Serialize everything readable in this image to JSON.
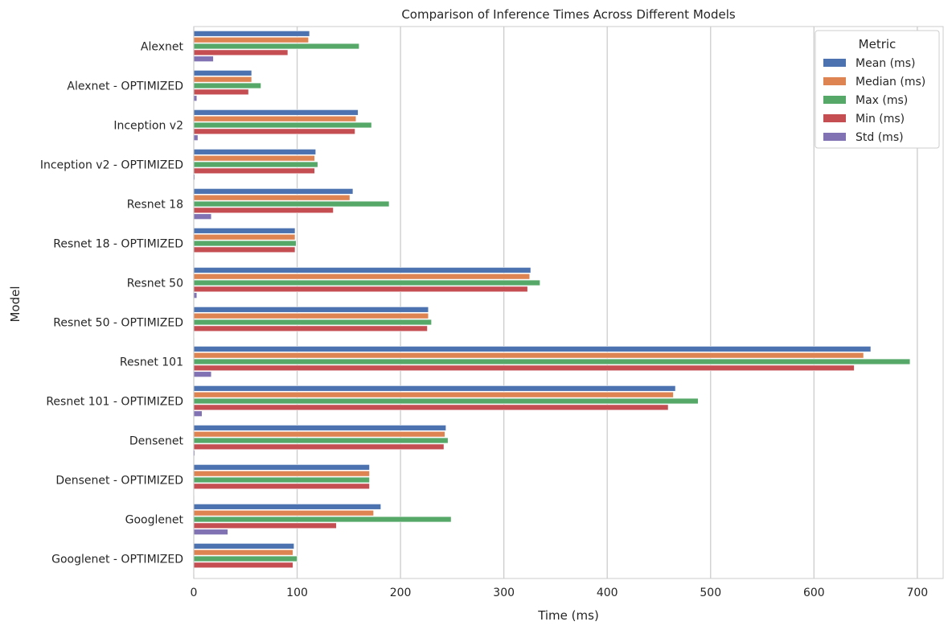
{
  "chart_data": {
    "type": "bar",
    "orientation": "horizontal",
    "title": "Comparison of Inference Times Across Different Models",
    "xlabel": "Time (ms)",
    "ylabel": "Model",
    "xlim": [
      0,
      725
    ],
    "xticks": [
      0,
      100,
      200,
      300,
      400,
      500,
      600,
      700
    ],
    "grid": "vertical",
    "legend": {
      "title": "Metric",
      "position": "top-right"
    },
    "categories": [
      "Alexnet",
      "Alexnet - OPTIMIZED",
      "Inception v2",
      "Inception v2 - OPTIMIZED",
      "Resnet 18",
      "Resnet 18 - OPTIMIZED",
      "Resnet 50",
      "Resnet 50 - OPTIMIZED",
      "Resnet 101",
      "Resnet 101 - OPTIMIZED",
      "Densenet",
      "Densenet - OPTIMIZED",
      "Googlenet",
      "Googlenet - OPTIMIZED"
    ],
    "series": [
      {
        "name": "Mean (ms)",
        "color": "#4c72b0",
        "values": [
          112,
          56,
          159,
          118,
          154,
          98,
          326,
          227,
          655,
          466,
          244,
          170,
          181,
          97
        ]
      },
      {
        "name": "Median (ms)",
        "color": "#dd8452",
        "values": [
          111,
          56,
          157,
          117,
          151,
          98,
          325,
          227,
          648,
          464,
          243,
          170,
          174,
          96
        ]
      },
      {
        "name": "Max (ms)",
        "color": "#55a868",
        "values": [
          160,
          65,
          172,
          120,
          189,
          99,
          335,
          230,
          693,
          488,
          246,
          170,
          249,
          100
        ]
      },
      {
        "name": "Min (ms)",
        "color": "#c44e52",
        "values": [
          91,
          53,
          156,
          117,
          135,
          98,
          323,
          226,
          639,
          459,
          242,
          170,
          138,
          96
        ]
      },
      {
        "name": "Std (ms)",
        "color": "#8172b3",
        "values": [
          19,
          3,
          4,
          1,
          17,
          0.5,
          3,
          0.5,
          17,
          8,
          1,
          0.5,
          33,
          0.5
        ]
      }
    ]
  }
}
